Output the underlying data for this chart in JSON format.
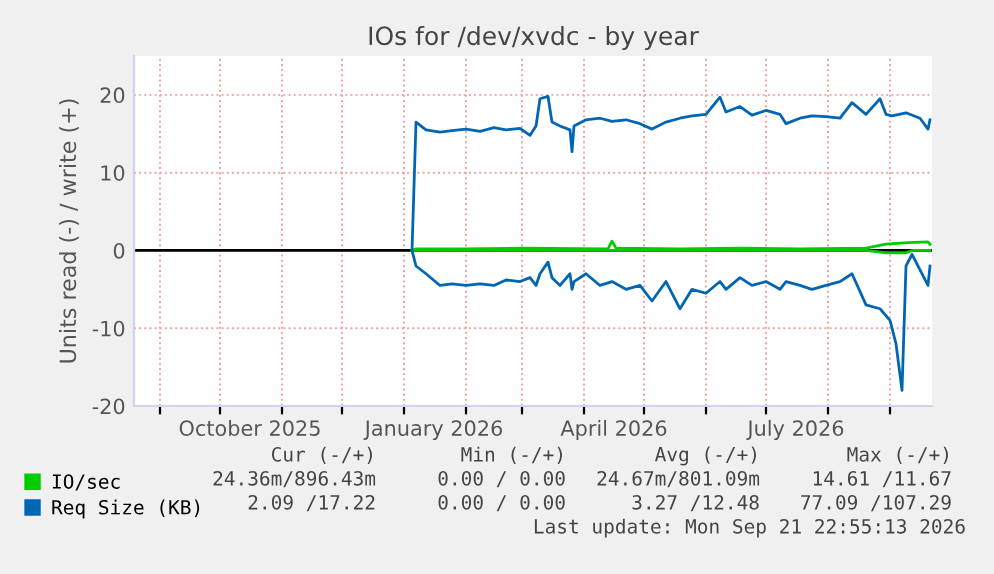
{
  "chart_data": {
    "type": "line",
    "title": "IOs for /dev/xvdc - by year",
    "ylabel": "Units read (-) / write (+)",
    "xlim": [
      "2025-08-19",
      "2026-09-22"
    ],
    "ylim": [
      -20,
      25
    ],
    "yticks": [
      -20,
      -10,
      0,
      10,
      20
    ],
    "xticks": [
      {
        "value": "2025-09-01",
        "label": null
      },
      {
        "value": "2025-10-01",
        "label": null
      },
      {
        "value": "2025-11-01",
        "label": null
      },
      {
        "value": "2025-12-01",
        "label": null
      },
      {
        "value": "2026-01-01",
        "label": null
      },
      {
        "value": "2026-02-01",
        "label": null
      },
      {
        "value": "2026-03-01",
        "label": null
      },
      {
        "value": "2026-04-01",
        "label": null
      },
      {
        "value": "2026-05-01",
        "label": null
      },
      {
        "value": "2026-06-01",
        "label": null
      },
      {
        "value": "2026-07-01",
        "label": null
      },
      {
        "value": "2026-08-01",
        "label": null
      },
      {
        "value": "2026-09-01",
        "label": null
      },
      {
        "value": "2025-10-16",
        "label": "October 2025"
      },
      {
        "value": "2026-01-16",
        "label": "January 2026"
      },
      {
        "value": "2026-04-16",
        "label": "April 2026"
      },
      {
        "value": "2026-07-16",
        "label": "July 2026"
      }
    ],
    "grid": true,
    "legend": "bottom",
    "ref_lines": [
      {
        "axis": "y",
        "value": 0,
        "color": "#000000"
      }
    ],
    "series": [
      {
        "name": "IO/sec",
        "color": "#00cc00",
        "x": [
          "2026-01-05",
          "2026-01-07",
          "2026-02-01",
          "2026-03-01",
          "2026-04-13",
          "2026-04-15",
          "2026-04-17",
          "2026-05-19",
          "2026-06-18",
          "2026-07-18",
          "2026-08-20",
          "2026-08-30",
          "2026-09-10",
          "2026-09-20",
          "2026-09-21",
          null,
          "2026-01-05",
          "2026-08-20",
          "2026-08-30",
          "2026-09-09",
          "2026-09-12",
          "2026-09-21"
        ],
        "values": [
          0,
          0.2,
          0.2,
          0.3,
          0.2,
          1.2,
          0.3,
          0.2,
          0.3,
          0.2,
          0.3,
          0.8,
          1,
          1.1,
          0.8,
          null,
          0,
          0,
          -0.3,
          -0.3,
          0,
          0
        ]
      },
      {
        "name": "Req Size (KB)",
        "color": "#0066b3",
        "x": [
          "2026-01-05",
          "2026-01-07",
          "2026-01-12",
          "2026-01-19",
          "2026-01-25",
          "2026-02-01",
          "2026-02-08",
          "2026-02-15",
          "2026-02-21",
          "2026-02-28",
          "2026-03-05",
          "2026-03-08",
          "2026-03-10",
          "2026-03-14",
          "2026-03-16",
          "2026-03-20",
          "2026-03-25",
          "2026-03-26",
          "2026-03-27",
          "2026-04-02",
          "2026-04-09",
          "2026-04-15",
          "2026-04-22",
          "2026-04-29",
          "2026-05-05",
          "2026-05-12",
          "2026-05-19",
          "2026-05-25",
          "2026-06-01",
          "2026-06-08",
          "2026-06-11",
          "2026-06-18",
          "2026-06-24",
          "2026-07-01",
          "2026-07-08",
          "2026-07-11",
          "2026-07-18",
          "2026-07-24",
          "2026-07-31",
          "2026-08-07",
          "2026-08-13",
          "2026-08-20",
          "2026-08-27",
          "2026-08-30",
          "2026-09-02",
          "2026-09-09",
          "2026-09-16",
          "2026-09-20",
          "2026-09-21",
          null,
          "2026-01-05",
          "2026-01-07",
          "2026-01-12",
          "2026-01-19",
          "2026-01-25",
          "2026-02-01",
          "2026-02-08",
          "2026-02-15",
          "2026-02-21",
          "2026-02-28",
          "2026-03-05",
          "2026-03-08",
          "2026-03-10",
          "2026-03-14",
          "2026-03-16",
          "2026-03-20",
          "2026-03-25",
          "2026-03-26",
          "2026-03-27",
          "2026-04-02",
          "2026-04-09",
          "2026-04-15",
          "2026-04-22",
          "2026-04-29",
          "2026-05-05",
          "2026-05-12",
          "2026-05-19",
          "2026-05-25",
          "2026-06-01",
          "2026-06-08",
          "2026-06-11",
          "2026-06-18",
          "2026-06-24",
          "2026-07-01",
          "2026-07-08",
          "2026-07-11",
          "2026-07-18",
          "2026-07-24",
          "2026-07-31",
          "2026-08-07",
          "2026-08-13",
          "2026-08-20",
          "2026-08-27",
          "2026-09-01",
          "2026-09-04",
          "2026-09-07",
          "2026-09-09",
          "2026-09-12",
          "2026-09-16",
          "2026-09-20",
          "2026-09-21"
        ],
        "values": [
          0,
          16.5,
          15.5,
          15.2,
          15.4,
          15.6,
          15.3,
          15.8,
          15.5,
          15.7,
          14.8,
          16,
          19.5,
          19.8,
          16.5,
          16,
          15.5,
          12.7,
          16,
          16.8,
          17,
          16.6,
          16.8,
          16.3,
          15.6,
          16.5,
          17,
          17.3,
          17.5,
          19.7,
          17.8,
          18.5,
          17.4,
          18,
          17.5,
          16.3,
          17,
          17.3,
          17.2,
          17,
          19,
          17.5,
          19.5,
          17.5,
          17.3,
          17.7,
          17,
          15.6,
          16.8,
          null,
          0,
          -2,
          -3,
          -4.5,
          -4.3,
          -4.5,
          -4.3,
          -4.5,
          -3.8,
          -4,
          -3.5,
          -4.5,
          -3,
          -1.5,
          -3.5,
          -4.5,
          -3,
          -5,
          -4,
          -3,
          -4.5,
          -4,
          -5,
          -4.5,
          -6.5,
          -4,
          -7.5,
          -5,
          -5.5,
          -4,
          -5,
          -3.5,
          -4.5,
          -4,
          -5,
          -4,
          -4.5,
          -5,
          -4.5,
          -4,
          -3,
          -7,
          -7.5,
          -9,
          -12,
          -18,
          -2,
          -0.5,
          -2.5,
          -4.5,
          -2
        ]
      }
    ],
    "annotations": [
      "Cur (-/+)",
      "Min (-/+)",
      "Avg (-/+)",
      "Max (-/+)",
      "24.36m/896.43m",
      "0.00 / 0.00",
      "24.67m/801.09m",
      "14.61 /11.67",
      "2.09 /17.22",
      "0.00 / 0.00",
      "3.27 /12.48",
      "77.09 /107.29",
      "Last update: Mon Sep 21 22:55:13 2026"
    ]
  }
}
